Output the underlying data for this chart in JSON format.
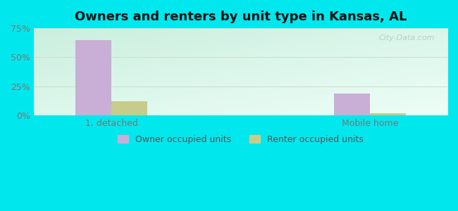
{
  "title": "Owners and renters by unit type in Kansas, AL",
  "categories": [
    "1, detached",
    "Mobile home"
  ],
  "owner_values": [
    65.0,
    19.0
  ],
  "renter_values": [
    12.0,
    2.0
  ],
  "owner_color": "#c9aed6",
  "renter_color": "#c8cc8a",
  "ylim": [
    0,
    75
  ],
  "yticks": [
    0,
    25,
    50,
    75
  ],
  "ytick_labels": [
    "0%",
    "25%",
    "50%",
    "75%"
  ],
  "bar_width": 0.28,
  "outer_bg": "#00e8ee",
  "plot_bg_left": "#cceedd",
  "plot_bg_right": "#eefff8",
  "title_fontsize": 13,
  "legend_labels": [
    "Owner occupied units",
    "Renter occupied units"
  ],
  "watermark": "City-Data.com"
}
